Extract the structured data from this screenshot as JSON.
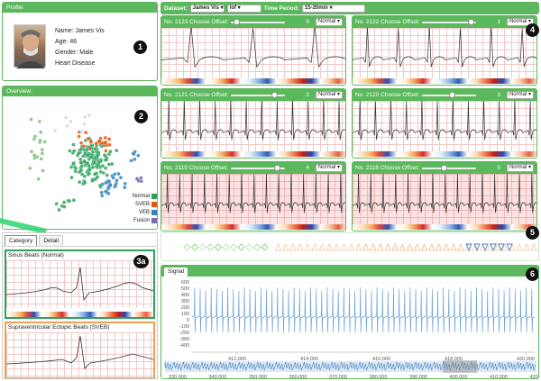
{
  "profile": {
    "title": "Profile:",
    "name": "Name: James Vis",
    "age": "Age: 46",
    "gender": "Gender: Male",
    "condition": "Heart Disease"
  },
  "overview": {
    "title": "Overview:",
    "legend": [
      {
        "label": "Normal",
        "color": "#2ca25f"
      },
      {
        "label": "SVEB",
        "color": "#e6550d"
      },
      {
        "label": "VEB",
        "color": "#3182bd"
      },
      {
        "label": "Fusion",
        "color": "#756bb1"
      }
    ]
  },
  "category_panel": {
    "tabs": [
      "Category",
      "Detail"
    ],
    "items": [
      {
        "title": "Sinus Beats (Normal)",
        "border": "#2ca25f"
      },
      {
        "title": "Supraventricular Ectopic Beats (SVEB)",
        "border": "#f0a050"
      }
    ]
  },
  "toolbar": {
    "dataset_label": "Dataset:",
    "dataset_value": "James Vis",
    "method_value": "lof",
    "period_label": "Time Period:",
    "period_value": "15-20min"
  },
  "ecg_cards": [
    {
      "label": "No. 2123 Choose Offset:",
      "num": "0",
      "select": "Normal",
      "knob": 0.05
    },
    {
      "label": "No. 2122 Choose Offset:",
      "num": "1",
      "select": "Normal",
      "knob": 0.95
    },
    {
      "label": "No. 2121 Choose Offset:",
      "num": "2",
      "select": "Normal",
      "knob": 0.85
    },
    {
      "label": "No. 2120 Choose Offset:",
      "num": "3",
      "select": "Normal",
      "knob": 0.55
    },
    {
      "label": "No. 2119 Choose Offset:",
      "num": "4",
      "select": "Normal",
      "knob": 0.9
    },
    {
      "label": "No. 2118 Choose Offset:",
      "num": "5",
      "select": "Normal",
      "knob": 0.4
    }
  ],
  "signal": {
    "tab": "Signal",
    "yticks": [
      "600",
      "500",
      "400",
      "300",
      "200",
      "100",
      "0",
      "-100",
      "-200",
      "-300",
      "-400"
    ],
    "xticks": [
      "412,000",
      "414,000",
      "416,000",
      "418,000",
      "420,000"
    ],
    "overview_ticks": [
      "330,000",
      "340,000",
      "350,000",
      "360,000",
      "370,000",
      "380,000",
      "390,000",
      "400,000",
      "410,000",
      "420,000"
    ]
  },
  "badges": [
    "1",
    "2",
    "3a",
    "4",
    "5",
    "6"
  ]
}
